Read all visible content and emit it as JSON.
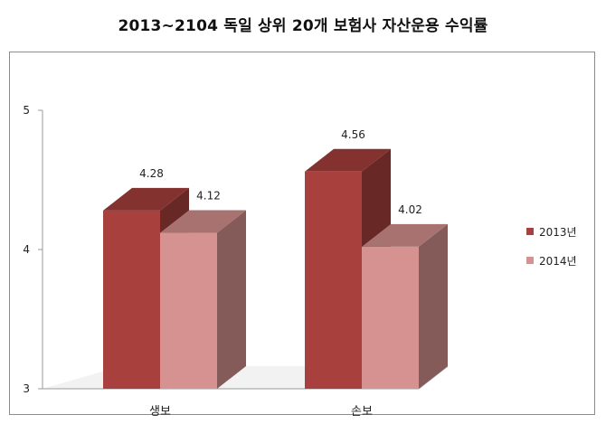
{
  "chart_data": {
    "type": "bar",
    "title": "2013~2104 독일 상위 20개 보험사 자산운용 수익률",
    "xlabel": "",
    "ylabel": "",
    "categories": [
      "생보",
      "손보"
    ],
    "series": [
      {
        "name": "2013년",
        "values": [
          4.28,
          4.56
        ],
        "color": "#a8403d"
      },
      {
        "name": "2014년",
        "values": [
          4.12,
          4.02
        ],
        "color": "#d69290"
      }
    ],
    "ylim": [
      3,
      5
    ],
    "yticks": [
      3,
      4,
      5
    ],
    "value_labels": [
      "4.28",
      "4.12",
      "4.56",
      "4.02"
    ],
    "legend_position": "right",
    "three_d": true
  }
}
